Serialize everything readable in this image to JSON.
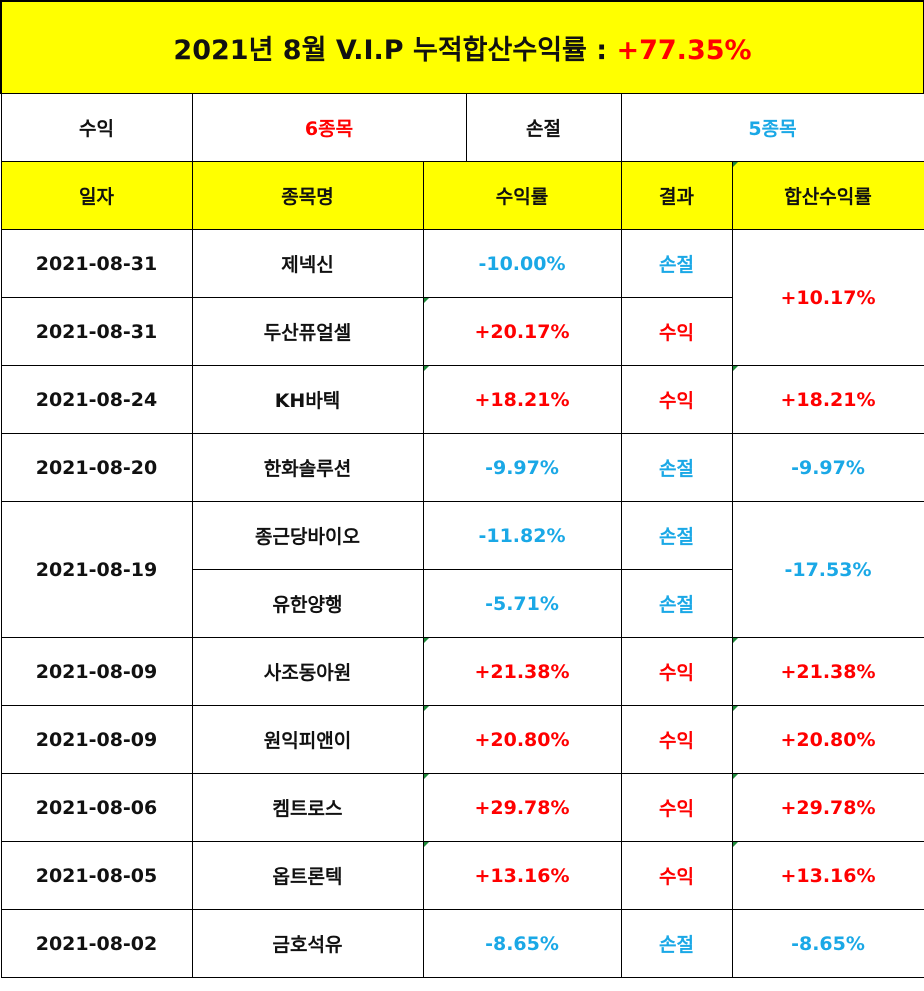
{
  "title": {
    "label": "2021년 8월 V.I.P 누적합산수익률 :",
    "total": "+77.35%"
  },
  "summary": {
    "profit_label": "수익",
    "profit_count": "6종목",
    "loss_label": "손절",
    "loss_count": "5종목"
  },
  "headers": {
    "date": "일자",
    "stock": "종목명",
    "return": "수익률",
    "result": "결과",
    "combined": "합산수익률"
  },
  "rows": [
    {
      "date": "2021-08-31",
      "stock": "제넥신",
      "return": "-10.00%",
      "result": "손절",
      "combined": "+10.17%"
    },
    {
      "date": "2021-08-31",
      "stock": "두산퓨얼셀",
      "return": "+20.17%",
      "result": "수익",
      "combined": ""
    },
    {
      "date": "2021-08-24",
      "stock": "KH바텍",
      "return": "+18.21%",
      "result": "수익",
      "combined": "+18.21%"
    },
    {
      "date": "2021-08-20",
      "stock": "한화솔루션",
      "return": "-9.97%",
      "result": "손절",
      "combined": "-9.97%"
    },
    {
      "date": "2021-08-19",
      "stock": "종근당바이오",
      "return": "-11.82%",
      "result": "손절",
      "combined": "-17.53%"
    },
    {
      "date": "",
      "stock": "유한양행",
      "return": "-5.71%",
      "result": "손절",
      "combined": ""
    },
    {
      "date": "2021-08-09",
      "stock": "사조동아원",
      "return": "+21.38%",
      "result": "수익",
      "combined": "+21.38%"
    },
    {
      "date": "2021-08-09",
      "stock": "원익피앤이",
      "return": "+20.80%",
      "result": "수익",
      "combined": "+20.80%"
    },
    {
      "date": "2021-08-06",
      "stock": "켐트로스",
      "return": "+29.78%",
      "result": "수익",
      "combined": "+29.78%"
    },
    {
      "date": "2021-08-05",
      "stock": "옵트론텍",
      "return": "+13.16%",
      "result": "수익",
      "combined": "+13.16%"
    },
    {
      "date": "2021-08-02",
      "stock": "금호석유",
      "return": "-8.65%",
      "result": "손절",
      "combined": "-8.65%"
    }
  ],
  "colors": {
    "header_bg": "#ffff00",
    "profit": "#ff0000",
    "loss": "#1aa8e6"
  }
}
